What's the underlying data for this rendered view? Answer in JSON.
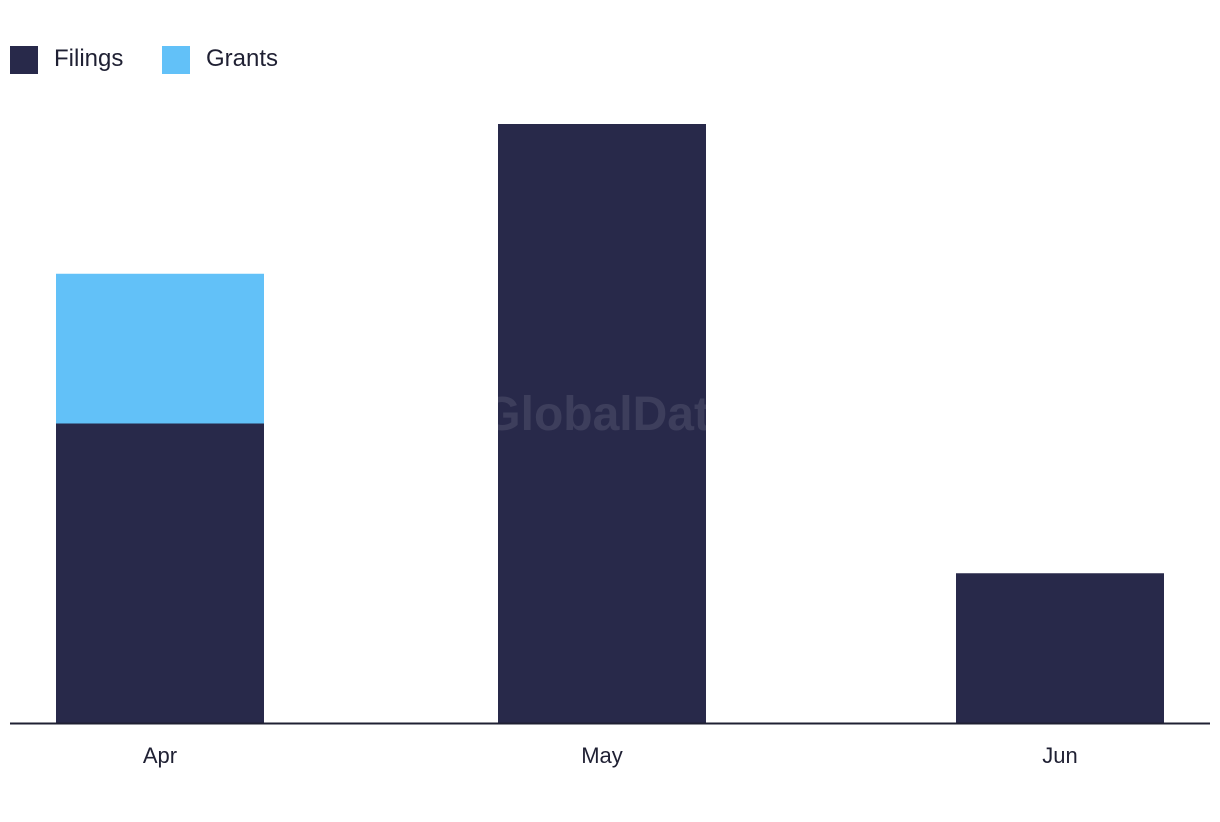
{
  "watermark": "GlobalData",
  "colors": {
    "Filings": "#28294a",
    "Grants": "#62c1f8",
    "axis": "#1f2033"
  },
  "chart_data": {
    "type": "bar",
    "stacked": true,
    "categories": [
      "Apr",
      "May",
      "Jun"
    ],
    "series": [
      {
        "name": "Filings",
        "values": [
          2,
          4,
          1
        ]
      },
      {
        "name": "Grants",
        "values": [
          1,
          0,
          0
        ]
      }
    ],
    "ylim": [
      0,
      4
    ],
    "grid": false,
    "legend_position": "top-left",
    "title": "",
    "xlabel": "",
    "ylabel": ""
  }
}
